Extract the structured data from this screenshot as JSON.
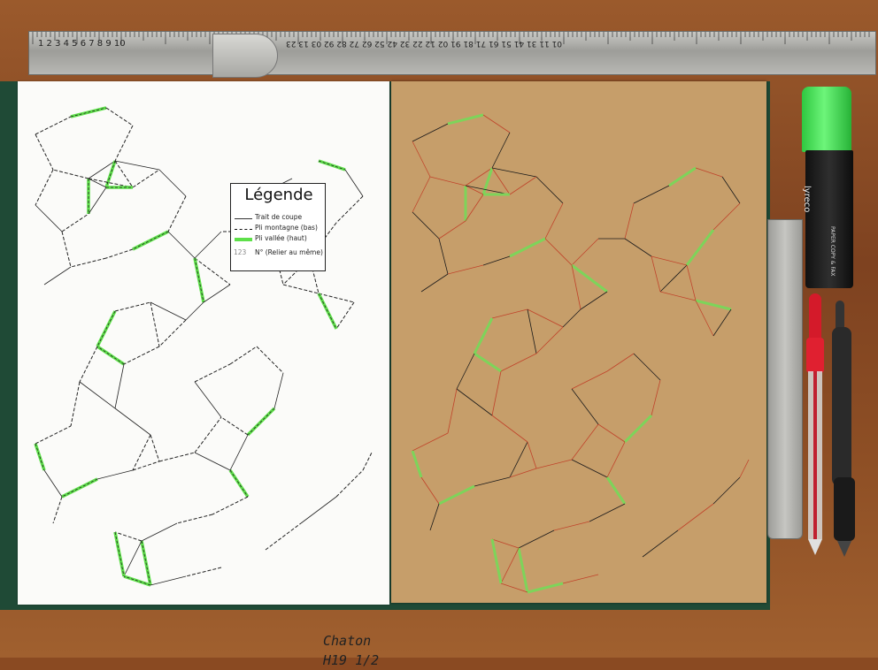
{
  "scene": {
    "description_colors": {
      "paper": "#fbfbf9",
      "cardboard": "#c69e6a",
      "valley_fold": "#5ee04a",
      "thread_red": "#c0432a",
      "thread_black": "#1a1a1a",
      "highlighter": "#3fd64f"
    }
  },
  "ruler": {
    "numbers": "1  2  3  4  5  6  7  8  9  10",
    "numbers_far": "01  11  31  41  51  61  71  81  91  02  12  22  32  42  52  62  72  82  92  03  13  23"
  },
  "legend": {
    "title": "Légende",
    "items": [
      {
        "label": "Trait de coupe",
        "style": "solid"
      },
      {
        "label": "Pli montagne (bas)",
        "style": "dashed"
      },
      {
        "label": "Pli vallée (haut)",
        "style": "green"
      },
      {
        "label": "N° (Relier au même)",
        "style": "number",
        "sample": "123"
      }
    ]
  },
  "signature": {
    "line1": "Chaton",
    "line2": "H19  1/2"
  },
  "highlighter": {
    "brand": "lyreco",
    "label": "PAPER COPY & FAX"
  }
}
